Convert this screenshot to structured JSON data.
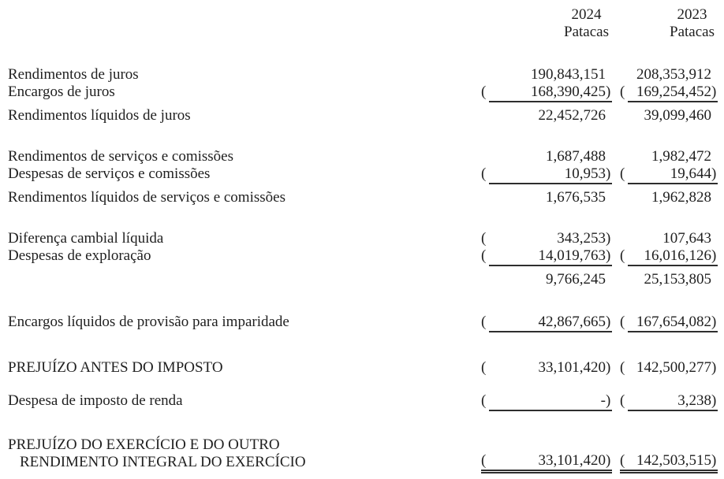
{
  "header": {
    "columns": [
      {
        "year": "2024",
        "unit": "Patacas"
      },
      {
        "year": "2023",
        "unit": "Patacas"
      }
    ]
  },
  "statement": {
    "rows": [
      {
        "label": "Rendimentos de juros",
        "spacing": "first",
        "cells": [
          {
            "value": "190,843,151",
            "paren": false,
            "underline": "none"
          },
          {
            "value": "208,353,912",
            "paren": false,
            "underline": "none"
          }
        ]
      },
      {
        "label": "Encargos de juros",
        "spacing": "next",
        "cells": [
          {
            "value": "168,390,425",
            "paren": true,
            "underline": "single"
          },
          {
            "value": "169,254,452",
            "paren": true,
            "underline": "single"
          }
        ]
      },
      {
        "label": "Rendimentos líquidos de juros",
        "spacing": "result",
        "cells": [
          {
            "value": "22,452,726",
            "paren": false,
            "underline": "none"
          },
          {
            "value": "39,099,460",
            "paren": false,
            "underline": "none"
          }
        ]
      },
      {
        "label": "Rendimentos de serviços e comissões",
        "spacing": "section",
        "cells": [
          {
            "value": "1,687,488",
            "paren": false,
            "underline": "none"
          },
          {
            "value": "1,982,472",
            "paren": false,
            "underline": "none"
          }
        ]
      },
      {
        "label": "Despesas de serviços e comissões",
        "spacing": "next",
        "cells": [
          {
            "value": "10,953",
            "paren": true,
            "underline": "single"
          },
          {
            "value": "19,644",
            "paren": true,
            "underline": "single"
          }
        ]
      },
      {
        "label": "Rendimentos líquidos de serviços e comissões",
        "spacing": "result",
        "cells": [
          {
            "value": "1,676,535",
            "paren": false,
            "underline": "none"
          },
          {
            "value": "1,962,828",
            "paren": false,
            "underline": "none"
          }
        ]
      },
      {
        "label": "Diferença cambial líquida",
        "spacing": "section",
        "cells": [
          {
            "value": "343,253",
            "paren": true,
            "underline": "none"
          },
          {
            "value": "107,643",
            "paren": false,
            "underline": "none"
          }
        ]
      },
      {
        "label": "Despesas de exploração",
        "spacing": "next",
        "cells": [
          {
            "value": "14,019,763",
            "paren": true,
            "underline": "single"
          },
          {
            "value": "16,016,126",
            "paren": true,
            "underline": "single"
          }
        ]
      },
      {
        "label": "",
        "spacing": "result",
        "cells": [
          {
            "value": "9,766,245",
            "paren": false,
            "underline": "none"
          },
          {
            "value": "25,153,805",
            "paren": false,
            "underline": "none"
          }
        ]
      },
      {
        "label": "Encargos líquidos de provisão para imparidade",
        "spacing": "block",
        "cells": [
          {
            "value": "42,867,665",
            "paren": true,
            "underline": "single"
          },
          {
            "value": "167,654,082",
            "paren": true,
            "underline": "single"
          }
        ]
      },
      {
        "label": "PREJUÍZO ANTES DO IMPOSTO",
        "spacing": "block-lg",
        "cells": [
          {
            "value": "33,101,420",
            "paren": true,
            "underline": "none"
          },
          {
            "value": "142,500,277",
            "paren": true,
            "underline": "none"
          }
        ]
      },
      {
        "label": "Despesa de imposto de renda",
        "spacing": "after-title",
        "cells": [
          {
            "value": "-",
            "paren": true,
            "underline": "single"
          },
          {
            "value": "3,238",
            "paren": true,
            "underline": "single"
          }
        ]
      },
      {
        "label": "PREJUÍZO DO EXERCÍCIO E DO OUTRO",
        "label2": "RENDIMENTO INTEGRAL DO EXERCÍCIO",
        "spacing": "block",
        "cells": [
          {
            "value": "33,101,420",
            "paren": true,
            "underline": "double"
          },
          {
            "value": "142,503,515",
            "paren": true,
            "underline": "double"
          }
        ]
      }
    ]
  }
}
